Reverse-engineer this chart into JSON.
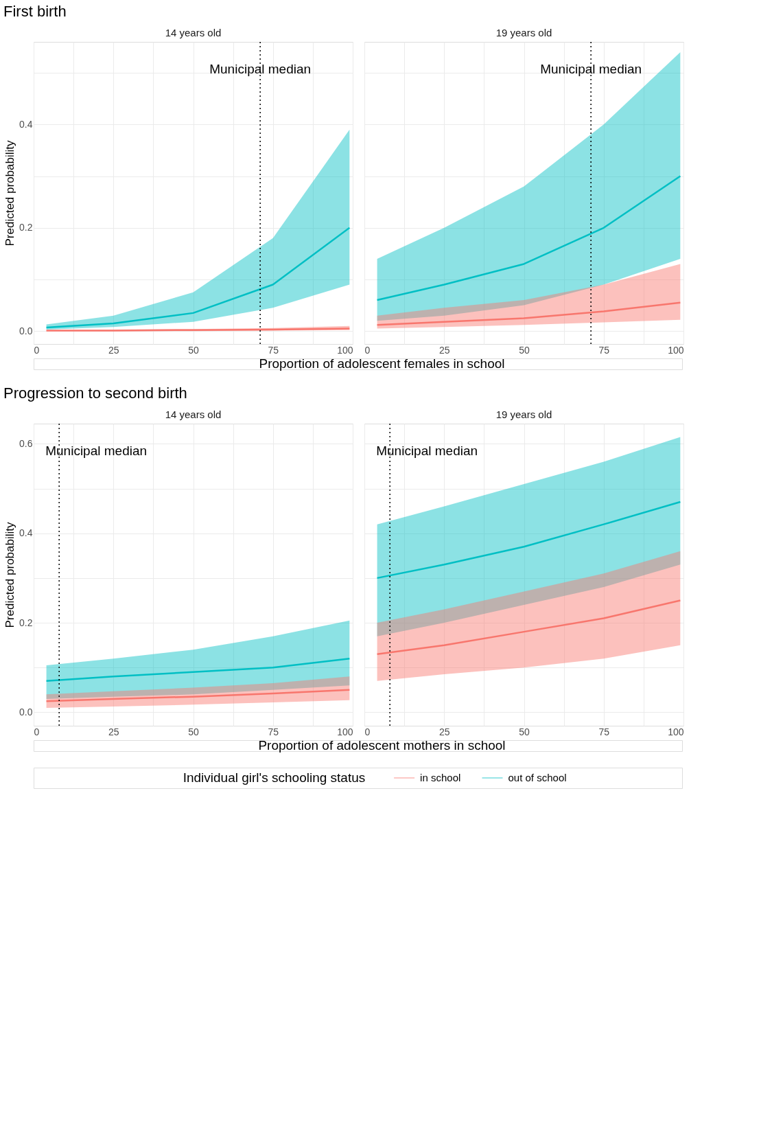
{
  "chart_data": [
    {
      "type": "line",
      "title": "First birth",
      "subtitle": "14 years old",
      "xlabel": "Proportion of adolescent females in school",
      "ylabel": "Predicted probability",
      "legend": "bottom",
      "legend_title": "Individual girl's schooling status",
      "x": [
        4,
        25,
        50,
        75,
        99
      ],
      "xlim": [
        0,
        100
      ],
      "ylim": [
        -0.025,
        0.56
      ],
      "xticks": [
        0,
        {
          "value": 12.5,
          "label": null
        },
        25,
        {
          "value": 37.5,
          "label": null
        },
        50,
        {
          "value": 62.5,
          "label": null
        },
        75,
        {
          "value": 87.5,
          "label": null
        },
        100
      ],
      "yticks": [
        {
          "value": 0,
          "label": "0.0"
        },
        {
          "value": 0.1,
          "label": null
        },
        0.2,
        {
          "value": 0.3,
          "label": null
        },
        0.4,
        {
          "value": 0.5,
          "label": null
        }
      ],
      "grid": true,
      "ref_lines": [
        {
          "axis": "x",
          "value": 71,
          "label": "Municipal median",
          "color": "#000000",
          "line_style": "dotted"
        }
      ],
      "series": [
        {
          "name": "in school",
          "color": "#f8766d",
          "values": [
            0.001,
            0.001,
            0.002,
            0.003,
            0.005
          ],
          "lower": [
            0,
            0,
            0,
            0.001,
            0.002
          ],
          "upper": [
            0.002,
            0.003,
            0.004,
            0.006,
            0.01
          ]
        },
        {
          "name": "out of school",
          "color": "#00bfc4",
          "values": [
            0.007,
            0.015,
            0.035,
            0.09,
            0.2
          ],
          "lower": [
            0.003,
            0.008,
            0.018,
            0.045,
            0.09
          ],
          "upper": [
            0.013,
            0.03,
            0.075,
            0.18,
            0.39
          ]
        }
      ]
    },
    {
      "type": "line",
      "subtitle": "19 years old",
      "x": [
        4,
        25,
        50,
        75,
        99
      ],
      "xlim": [
        0,
        100
      ],
      "ylim": [
        -0.025,
        0.56
      ],
      "tick_labels": "x",
      "xticks": [
        0,
        {
          "value": 12.5,
          "label": null
        },
        25,
        {
          "value": 37.5,
          "label": null
        },
        50,
        {
          "value": 62.5,
          "label": null
        },
        75,
        {
          "value": 87.5,
          "label": null
        },
        100
      ],
      "yticks": [
        0,
        0.1,
        0.2,
        0.3,
        0.4,
        0.5
      ],
      "grid": true,
      "ref_lines": [
        {
          "axis": "x",
          "value": 71,
          "label": "Municipal median",
          "color": "#000000",
          "line_style": "dotted"
        }
      ],
      "series": [
        {
          "name": "in school",
          "color": "#f8766d",
          "values": [
            0.012,
            0.018,
            0.025,
            0.038,
            0.055
          ],
          "lower": [
            0.005,
            0.008,
            0.012,
            0.017,
            0.022
          ],
          "upper": [
            0.03,
            0.045,
            0.06,
            0.09,
            0.13
          ]
        },
        {
          "name": "out of school",
          "color": "#00bfc4",
          "values": [
            0.06,
            0.09,
            0.13,
            0.2,
            0.3
          ],
          "lower": [
            0.02,
            0.03,
            0.05,
            0.09,
            0.14
          ],
          "upper": [
            0.14,
            0.2,
            0.28,
            0.4,
            0.54
          ]
        }
      ]
    },
    {
      "type": "line",
      "title": "Progression to second birth",
      "subtitle": "14 years old",
      "xlabel": "Proportion of adolescent mothers in school",
      "ylabel": "Predicted probability",
      "x": [
        4,
        25,
        50,
        75,
        99
      ],
      "xlim": [
        0,
        100
      ],
      "ylim": [
        -0.03,
        0.645
      ],
      "xticks": [
        0,
        {
          "value": 12.5,
          "label": null
        },
        25,
        {
          "value": 37.5,
          "label": null
        },
        50,
        {
          "value": 62.5,
          "label": null
        },
        75,
        {
          "value": 87.5,
          "label": null
        },
        100
      ],
      "yticks": [
        {
          "value": 0,
          "label": "0.0"
        },
        {
          "value": 0.1,
          "label": null
        },
        0.2,
        {
          "value": 0.3,
          "label": null
        },
        0.4,
        {
          "value": 0.5,
          "label": null
        },
        0.6
      ],
      "grid": true,
      "ref_lines": [
        {
          "axis": "x",
          "value": 8,
          "label": "Municipal median",
          "color": "#000000",
          "line_style": "dotted"
        }
      ],
      "series": [
        {
          "name": "in school",
          "color": "#f8766d",
          "values": [
            0.025,
            0.03,
            0.035,
            0.042,
            0.05
          ],
          "lower": [
            0.01,
            0.013,
            0.017,
            0.022,
            0.027
          ],
          "upper": [
            0.04,
            0.047,
            0.055,
            0.065,
            0.08
          ]
        },
        {
          "name": "out of school",
          "color": "#00bfc4",
          "values": [
            0.07,
            0.08,
            0.09,
            0.1,
            0.12
          ],
          "lower": [
            0.03,
            0.035,
            0.04,
            0.05,
            0.06
          ],
          "upper": [
            0.105,
            0.12,
            0.14,
            0.17,
            0.205
          ]
        }
      ]
    },
    {
      "type": "line",
      "subtitle": "19 years old",
      "x": [
        4,
        25,
        50,
        75,
        99
      ],
      "xlim": [
        0,
        100
      ],
      "ylim": [
        -0.03,
        0.645
      ],
      "tick_labels": "x",
      "xticks": [
        0,
        {
          "value": 12.5,
          "label": null
        },
        25,
        {
          "value": 37.5,
          "label": null
        },
        50,
        {
          "value": 62.5,
          "label": null
        },
        75,
        {
          "value": 87.5,
          "label": null
        },
        100
      ],
      "yticks": [
        0,
        0.1,
        0.2,
        0.3,
        0.4,
        0.5,
        0.6
      ],
      "grid": true,
      "ref_lines": [
        {
          "axis": "x",
          "value": 8,
          "label": "Municipal median",
          "color": "#000000",
          "line_style": "dotted"
        }
      ],
      "series": [
        {
          "name": "in school",
          "color": "#f8766d",
          "values": [
            0.13,
            0.15,
            0.18,
            0.21,
            0.25
          ],
          "lower": [
            0.07,
            0.085,
            0.1,
            0.12,
            0.15
          ],
          "upper": [
            0.2,
            0.23,
            0.27,
            0.31,
            0.36
          ]
        },
        {
          "name": "out of school",
          "color": "#00bfc4",
          "values": [
            0.3,
            0.33,
            0.37,
            0.42,
            0.47
          ],
          "lower": [
            0.17,
            0.2,
            0.24,
            0.28,
            0.33
          ],
          "upper": [
            0.42,
            0.46,
            0.51,
            0.56,
            0.615
          ]
        }
      ]
    }
  ]
}
